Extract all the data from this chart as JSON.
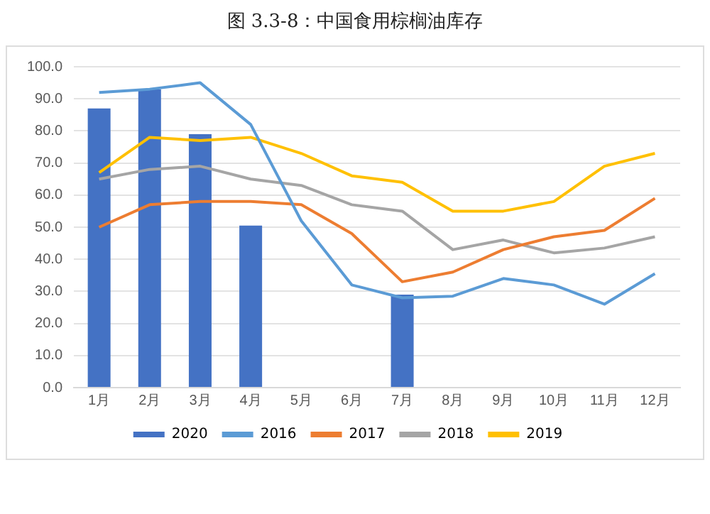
{
  "chart_data": {
    "type": "bar",
    "title": "图 3.3-8：中国食用棕榈油库存",
    "categories": [
      "1月",
      "2月",
      "3月",
      "4月",
      "5月",
      "6月",
      "7月",
      "8月",
      "9月",
      "10月",
      "11月",
      "12月"
    ],
    "series": [
      {
        "name": "2020",
        "color": "#4472c4",
        "values": [
          87,
          93,
          79,
          50.5,
          null,
          null,
          29,
          null,
          null,
          null,
          null,
          null
        ]
      },
      {
        "name": "2016",
        "type": "line",
        "color": "#5b9bd5",
        "values": [
          92,
          93,
          95,
          82,
          52,
          32,
          28,
          28.5,
          34,
          32,
          26,
          35.5
        ]
      },
      {
        "name": "2017",
        "type": "line",
        "color": "#ed7d31",
        "values": [
          50,
          57,
          58,
          58,
          57,
          48,
          33,
          36,
          43,
          47,
          49,
          59
        ]
      },
      {
        "name": "2018",
        "type": "line",
        "color": "#a5a5a5",
        "values": [
          65,
          68,
          69,
          65,
          63,
          57,
          55,
          43,
          46,
          42,
          43.5,
          47
        ]
      },
      {
        "name": "2019",
        "type": "line",
        "color": "#ffc000",
        "values": [
          67,
          78,
          77,
          78,
          73,
          66,
          64,
          55,
          55,
          58,
          69,
          73
        ]
      }
    ],
    "ylim": [
      0,
      100
    ],
    "yticks": [
      {
        "value": 0,
        "label": "0.0"
      },
      {
        "value": 10,
        "label": "10.0"
      },
      {
        "value": 20,
        "label": "20.0"
      },
      {
        "value": 30,
        "label": "30.0"
      },
      {
        "value": 40,
        "label": "40.0"
      },
      {
        "value": 50,
        "label": "50.0"
      },
      {
        "value": 60,
        "label": "60.0"
      },
      {
        "value": 70,
        "label": "70.0"
      },
      {
        "value": 80,
        "label": "80.0"
      },
      {
        "value": 90,
        "label": "90.0"
      },
      {
        "value": 100,
        "label": "100.0"
      }
    ],
    "grid": "y",
    "legend": "bottom",
    "marker": "none",
    "line_style": "solid"
  }
}
